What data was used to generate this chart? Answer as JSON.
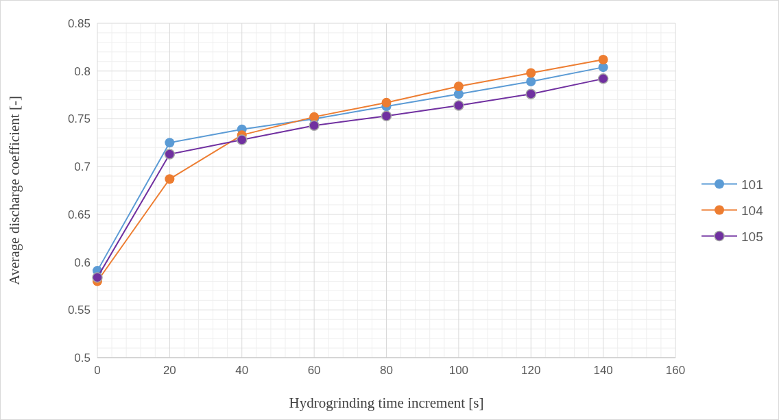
{
  "chart_data": {
    "type": "line",
    "xlabel": "Hydrogrinding time increment [s]",
    "ylabel": "Average discharge coefficient [-]",
    "x": [
      0,
      20,
      40,
      60,
      80,
      100,
      120,
      140
    ],
    "series": [
      {
        "name": "101",
        "color": "#5b9bd5",
        "values": [
          0.591,
          0.725,
          0.739,
          0.75,
          0.763,
          0.776,
          0.789,
          0.804
        ]
      },
      {
        "name": "104",
        "color": "#ed7d31",
        "values": [
          0.58,
          0.687,
          0.733,
          0.752,
          0.767,
          0.784,
          0.798,
          0.812
        ]
      },
      {
        "name": "105",
        "color": "#7030a0",
        "values": [
          0.584,
          0.713,
          0.728,
          0.743,
          0.753,
          0.764,
          0.776,
          0.792
        ]
      }
    ],
    "xlim": [
      0,
      160
    ],
    "xticks": [
      0,
      20,
      40,
      60,
      80,
      100,
      120,
      140,
      160
    ],
    "ylim": [
      0.5,
      0.85
    ],
    "yticks": [
      {
        "value": 0.5,
        "label": "0.5"
      },
      {
        "value": 0.55,
        "label": "0.55"
      },
      {
        "value": 0.6,
        "label": "0.6"
      },
      {
        "value": 0.65,
        "label": "0.65"
      },
      {
        "value": 0.7,
        "label": "0.7"
      },
      {
        "value": 0.75,
        "label": "0.75"
      },
      {
        "value": 0.8,
        "label": "0.8"
      },
      {
        "value": 0.85,
        "label": "0.85"
      }
    ],
    "grid": true,
    "legend": "right",
    "marker": "circle",
    "line_style": "solid"
  }
}
